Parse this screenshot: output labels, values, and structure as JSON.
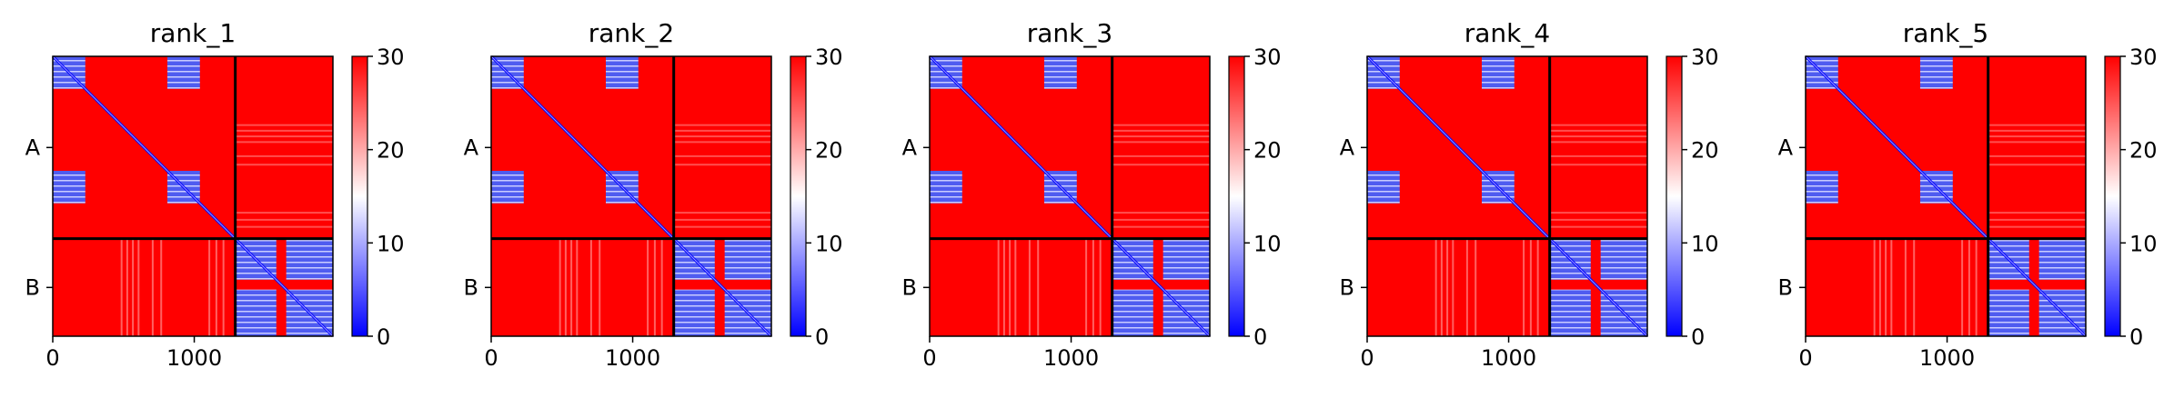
{
  "colorbar": {
    "colormap": "bwr",
    "vmin": 0,
    "vmax": 30,
    "ticks": [
      0,
      10,
      20,
      30
    ],
    "colors": {
      "low": "#0000ff",
      "mid": "#ffffff",
      "high": "#ff0000"
    }
  },
  "chart_data": [
    {
      "type": "heatmap",
      "title": "rank_1",
      "x_ticks": [
        0,
        1000
      ],
      "y_tick_labels": [
        "A",
        "B"
      ],
      "xlim": [
        0,
        1980
      ],
      "ylim": [
        0,
        1980
      ],
      "chain_boundary": 1290,
      "clim": [
        0,
        30
      ],
      "colormap": "bwr",
      "chains": [
        {
          "name": "A",
          "start": 0,
          "end": 1290
        },
        {
          "name": "B",
          "start": 1290,
          "end": 1980
        }
      ],
      "low_value_blocks": [
        {
          "x": [
            0,
            230
          ],
          "y": [
            0,
            230
          ]
        },
        {
          "x": [
            810,
            1040
          ],
          "y": [
            0,
            230
          ]
        },
        {
          "x": [
            0,
            230
          ],
          "y": [
            810,
            1040
          ]
        },
        {
          "x": [
            810,
            1040
          ],
          "y": [
            810,
            1040
          ]
        },
        {
          "x": [
            1290,
            1580
          ],
          "y": [
            1290,
            1580
          ]
        },
        {
          "x": [
            1650,
            1980
          ],
          "y": [
            1290,
            1580
          ]
        },
        {
          "x": [
            1290,
            1580
          ],
          "y": [
            1650,
            1980
          ]
        },
        {
          "x": [
            1650,
            1980
          ],
          "y": [
            1650,
            1980
          ]
        }
      ]
    },
    {
      "type": "heatmap",
      "title": "rank_2",
      "x_ticks": [
        0,
        1000
      ],
      "y_tick_labels": [
        "A",
        "B"
      ],
      "xlim": [
        0,
        1980
      ],
      "ylim": [
        0,
        1980
      ],
      "chain_boundary": 1290,
      "clim": [
        0,
        30
      ],
      "colormap": "bwr",
      "chains": [
        {
          "name": "A",
          "start": 0,
          "end": 1290
        },
        {
          "name": "B",
          "start": 1290,
          "end": 1980
        }
      ],
      "low_value_blocks": [
        {
          "x": [
            0,
            230
          ],
          "y": [
            0,
            230
          ]
        },
        {
          "x": [
            810,
            1040
          ],
          "y": [
            0,
            230
          ]
        },
        {
          "x": [
            0,
            230
          ],
          "y": [
            810,
            1040
          ]
        },
        {
          "x": [
            810,
            1040
          ],
          "y": [
            810,
            1040
          ]
        },
        {
          "x": [
            1290,
            1580
          ],
          "y": [
            1290,
            1580
          ]
        },
        {
          "x": [
            1650,
            1980
          ],
          "y": [
            1290,
            1580
          ]
        },
        {
          "x": [
            1290,
            1580
          ],
          "y": [
            1650,
            1980
          ]
        },
        {
          "x": [
            1650,
            1980
          ],
          "y": [
            1650,
            1980
          ]
        }
      ]
    },
    {
      "type": "heatmap",
      "title": "rank_3",
      "x_ticks": [
        0,
        1000
      ],
      "y_tick_labels": [
        "A",
        "B"
      ],
      "xlim": [
        0,
        1980
      ],
      "ylim": [
        0,
        1980
      ],
      "chain_boundary": 1290,
      "clim": [
        0,
        30
      ],
      "colormap": "bwr",
      "chains": [
        {
          "name": "A",
          "start": 0,
          "end": 1290
        },
        {
          "name": "B",
          "start": 1290,
          "end": 1980
        }
      ],
      "low_value_blocks": [
        {
          "x": [
            0,
            230
          ],
          "y": [
            0,
            230
          ]
        },
        {
          "x": [
            810,
            1040
          ],
          "y": [
            0,
            230
          ]
        },
        {
          "x": [
            0,
            230
          ],
          "y": [
            810,
            1040
          ]
        },
        {
          "x": [
            810,
            1040
          ],
          "y": [
            810,
            1040
          ]
        },
        {
          "x": [
            1290,
            1580
          ],
          "y": [
            1290,
            1580
          ]
        },
        {
          "x": [
            1650,
            1980
          ],
          "y": [
            1290,
            1580
          ]
        },
        {
          "x": [
            1290,
            1580
          ],
          "y": [
            1650,
            1980
          ]
        },
        {
          "x": [
            1650,
            1980
          ],
          "y": [
            1650,
            1980
          ]
        }
      ]
    },
    {
      "type": "heatmap",
      "title": "rank_4",
      "x_ticks": [
        0,
        1000
      ],
      "y_tick_labels": [
        "A",
        "B"
      ],
      "xlim": [
        0,
        1980
      ],
      "ylim": [
        0,
        1980
      ],
      "chain_boundary": 1290,
      "clim": [
        0,
        30
      ],
      "colormap": "bwr",
      "chains": [
        {
          "name": "A",
          "start": 0,
          "end": 1290
        },
        {
          "name": "B",
          "start": 1290,
          "end": 1980
        }
      ],
      "low_value_blocks": [
        {
          "x": [
            0,
            230
          ],
          "y": [
            0,
            230
          ]
        },
        {
          "x": [
            810,
            1040
          ],
          "y": [
            0,
            230
          ]
        },
        {
          "x": [
            0,
            230
          ],
          "y": [
            810,
            1040
          ]
        },
        {
          "x": [
            810,
            1040
          ],
          "y": [
            810,
            1040
          ]
        },
        {
          "x": [
            1290,
            1580
          ],
          "y": [
            1290,
            1580
          ]
        },
        {
          "x": [
            1650,
            1980
          ],
          "y": [
            1290,
            1580
          ]
        },
        {
          "x": [
            1290,
            1580
          ],
          "y": [
            1650,
            1980
          ]
        },
        {
          "x": [
            1650,
            1980
          ],
          "y": [
            1650,
            1980
          ]
        }
      ]
    },
    {
      "type": "heatmap",
      "title": "rank_5",
      "x_ticks": [
        0,
        1000
      ],
      "y_tick_labels": [
        "A",
        "B"
      ],
      "xlim": [
        0,
        1980
      ],
      "ylim": [
        0,
        1980
      ],
      "chain_boundary": 1290,
      "clim": [
        0,
        30
      ],
      "colormap": "bwr",
      "chains": [
        {
          "name": "A",
          "start": 0,
          "end": 1290
        },
        {
          "name": "B",
          "start": 1290,
          "end": 1980
        }
      ],
      "low_value_blocks": [
        {
          "x": [
            0,
            230
          ],
          "y": [
            0,
            230
          ]
        },
        {
          "x": [
            810,
            1040
          ],
          "y": [
            0,
            230
          ]
        },
        {
          "x": [
            0,
            230
          ],
          "y": [
            810,
            1040
          ]
        },
        {
          "x": [
            810,
            1040
          ],
          "y": [
            810,
            1040
          ]
        },
        {
          "x": [
            1290,
            1580
          ],
          "y": [
            1290,
            1580
          ]
        },
        {
          "x": [
            1650,
            1980
          ],
          "y": [
            1290,
            1580
          ]
        },
        {
          "x": [
            1290,
            1580
          ],
          "y": [
            1650,
            1980
          ]
        },
        {
          "x": [
            1650,
            1980
          ],
          "y": [
            1650,
            1980
          ]
        }
      ]
    }
  ]
}
